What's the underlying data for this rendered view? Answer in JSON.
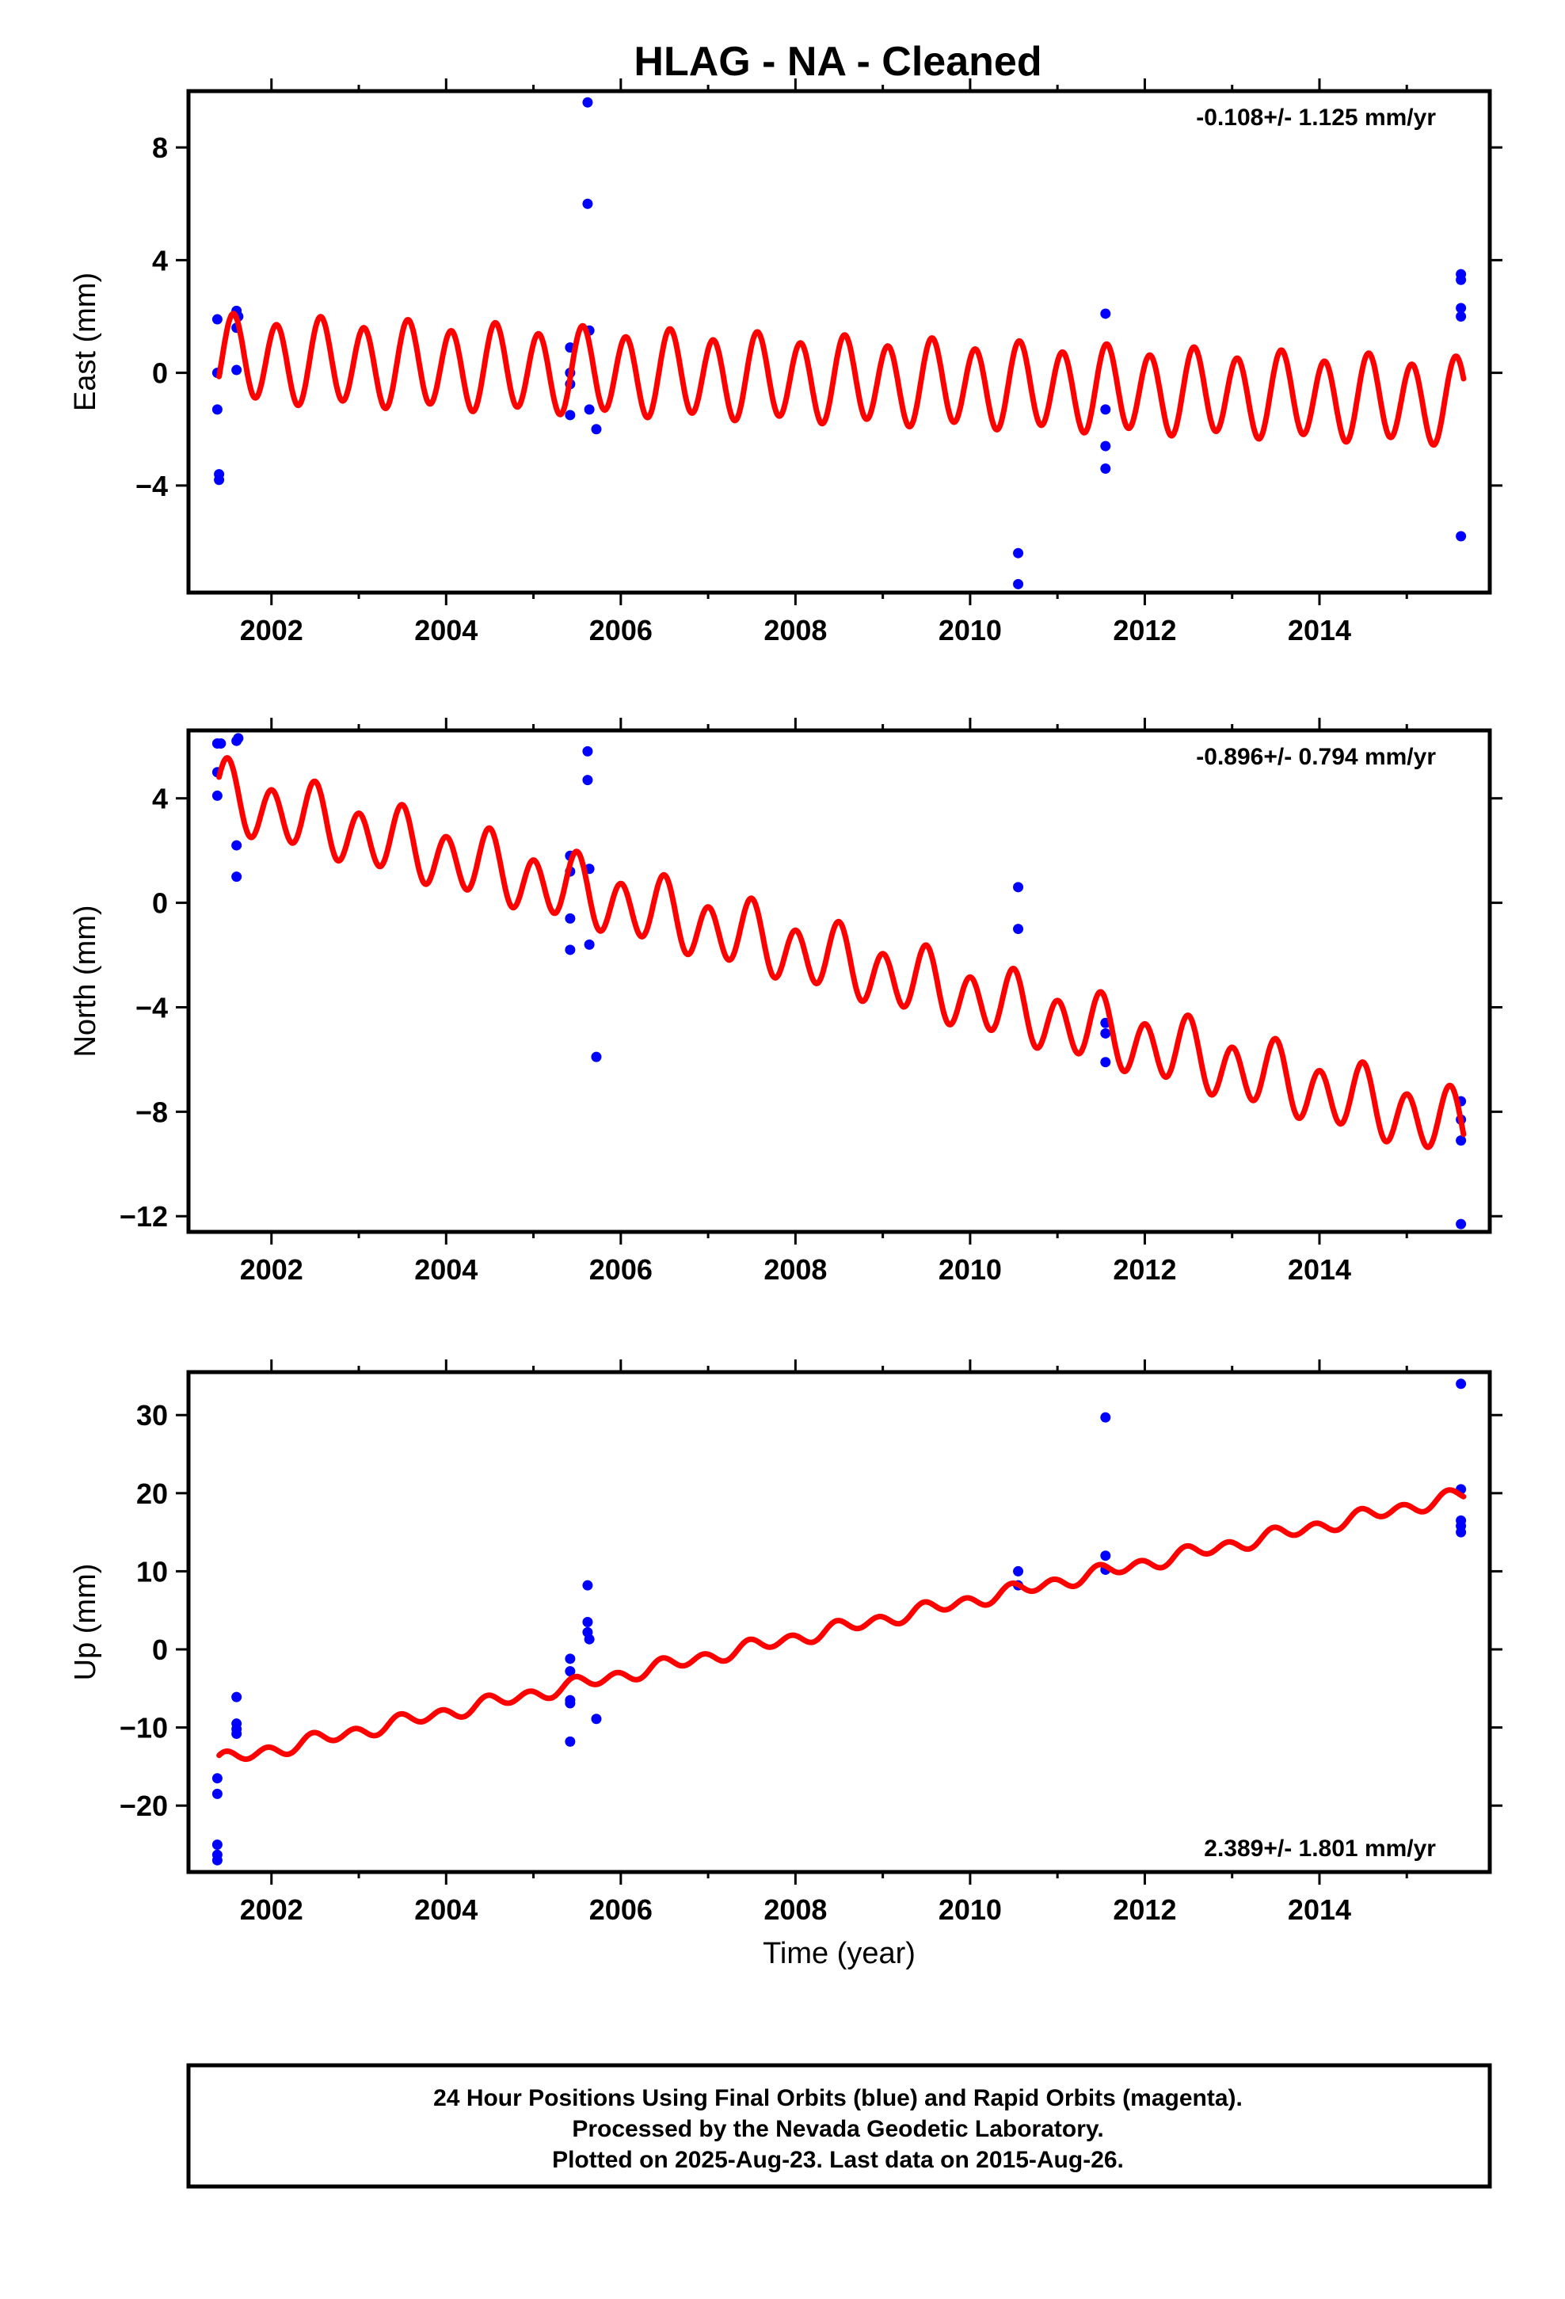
{
  "title": "HLAG  - NA - Cleaned",
  "colors": {
    "final_orbits": "#0000ff",
    "model": "#ff0000",
    "frame": "#000000"
  },
  "footer": {
    "line1": "24 Hour Positions Using Final Orbits (blue) and Rapid Orbits (magenta).",
    "line2": "Processed by the Nevada Geodetic Laboratory.",
    "line3": "Plotted on 2025-Aug-23. Last data on 2015-Aug-26."
  },
  "chart_data": [
    {
      "type": "scatter",
      "id": "east",
      "ylabel": "East (mm)",
      "rate_label": "-0.108+/- 1.125 mm/yr",
      "rate_position": "top-right",
      "xlim": [
        2001.05,
        2015.95
      ],
      "ylim": [
        -7.8,
        10.0
      ],
      "xticks": [
        2002,
        2004,
        2006,
        2008,
        2010,
        2012,
        2014
      ],
      "yticks": [
        8,
        4,
        0,
        -4
      ],
      "ytick_labels": [
        "8",
        "4",
        "0",
        "−4"
      ],
      "model": {
        "offset": 0.5,
        "trend": -0.108,
        "t0": 2001.4,
        "amp_annual": 0.2,
        "phase_annual": 0.0,
        "amp_semi": 1.45,
        "phase_semi": -0.45
      },
      "model_range": [
        2001.4,
        2015.65
      ],
      "points": [
        [
          2001.38,
          1.9
        ],
        [
          2001.38,
          0.0
        ],
        [
          2001.38,
          -1.3
        ],
        [
          2001.4,
          -3.6
        ],
        [
          2001.4,
          -3.8
        ],
        [
          2001.6,
          2.2
        ],
        [
          2001.6,
          1.6
        ],
        [
          2001.6,
          0.1
        ],
        [
          2001.62,
          2.0
        ],
        [
          2005.42,
          0.9
        ],
        [
          2005.42,
          0.0
        ],
        [
          2005.42,
          -0.4
        ],
        [
          2005.42,
          -1.5
        ],
        [
          2005.62,
          9.6
        ],
        [
          2005.62,
          6.0
        ],
        [
          2005.64,
          1.5
        ],
        [
          2005.64,
          -1.3
        ],
        [
          2005.72,
          -2.0
        ],
        [
          2010.55,
          -6.4
        ],
        [
          2010.55,
          -7.5
        ],
        [
          2011.55,
          2.1
        ],
        [
          2011.55,
          -1.3
        ],
        [
          2011.55,
          -2.6
        ],
        [
          2011.55,
          -3.4
        ],
        [
          2015.62,
          3.5
        ],
        [
          2015.62,
          3.3
        ],
        [
          2015.62,
          2.3
        ],
        [
          2015.62,
          2.0
        ],
        [
          2015.62,
          -5.8
        ]
      ]
    },
    {
      "type": "scatter",
      "id": "north",
      "ylabel": "North (mm)",
      "rate_label": "-0.896+/- 0.794 mm/yr",
      "rate_position": "top-right",
      "xlim": [
        2001.05,
        2015.95
      ],
      "ylim": [
        -12.6,
        6.6
      ],
      "xticks": [
        2002,
        2004,
        2006,
        2008,
        2010,
        2012,
        2014
      ],
      "yticks": [
        4,
        0,
        -4,
        -8,
        -12
      ],
      "ytick_labels": [
        "4",
        "0",
        "−4",
        "−8",
        "−12"
      ],
      "model": {
        "offset": 4.1,
        "trend": -0.896,
        "t0": 2001.4,
        "amp_annual": 0.4,
        "phase_annual": 1.2,
        "amp_semi": 1.15,
        "phase_semi": 0.3
      },
      "model_range": [
        2001.4,
        2015.65
      ],
      "points": [
        [
          2001.38,
          6.1
        ],
        [
          2001.42,
          6.1
        ],
        [
          2001.38,
          5.0
        ],
        [
          2001.38,
          4.1
        ],
        [
          2001.6,
          6.2
        ],
        [
          2001.62,
          6.3
        ],
        [
          2001.6,
          2.2
        ],
        [
          2001.6,
          1.0
        ],
        [
          2005.42,
          1.8
        ],
        [
          2005.42,
          1.2
        ],
        [
          2005.42,
          -0.6
        ],
        [
          2005.42,
          -1.8
        ],
        [
          2005.62,
          5.8
        ],
        [
          2005.62,
          4.7
        ],
        [
          2005.64,
          1.3
        ],
        [
          2005.64,
          -1.6
        ],
        [
          2005.72,
          -5.9
        ],
        [
          2010.55,
          0.6
        ],
        [
          2010.55,
          -1.0
        ],
        [
          2011.55,
          -4.6
        ],
        [
          2011.55,
          -5.0
        ],
        [
          2011.55,
          -6.1
        ],
        [
          2015.62,
          -7.6
        ],
        [
          2015.62,
          -8.3
        ],
        [
          2015.62,
          -9.1
        ],
        [
          2015.62,
          -12.3
        ]
      ]
    },
    {
      "type": "scatter",
      "id": "up",
      "ylabel": "Up (mm)",
      "xlabel": "Time (year)",
      "rate_label": "2.389+/- 1.801 mm/yr",
      "rate_position": "bottom-right",
      "xlim": [
        2001.05,
        2015.95
      ],
      "ylim": [
        -28.5,
        35.5
      ],
      "xticks": [
        2002,
        2004,
        2006,
        2008,
        2010,
        2012,
        2014
      ],
      "yticks": [
        30,
        20,
        10,
        0,
        -10,
        -20
      ],
      "ytick_labels": [
        "30",
        "20",
        "10",
        "0",
        "−10",
        "−20"
      ],
      "model": {
        "offset": -14.3,
        "trend": 2.389,
        "t0": 2001.4,
        "amp_annual": 0.4,
        "phase_annual": 0.5,
        "amp_semi": 0.75,
        "phase_semi": 0.8
      },
      "model_range": [
        2001.4,
        2015.65
      ],
      "points": [
        [
          2001.38,
          -16.5
        ],
        [
          2001.38,
          -18.5
        ],
        [
          2001.38,
          -25.0
        ],
        [
          2001.38,
          -26.3
        ],
        [
          2001.38,
          -27.0
        ],
        [
          2001.6,
          -6.1
        ],
        [
          2001.6,
          -9.5
        ],
        [
          2001.6,
          -10.2
        ],
        [
          2001.6,
          -10.8
        ],
        [
          2005.42,
          -1.2
        ],
        [
          2005.42,
          -2.8
        ],
        [
          2005.42,
          -6.5
        ],
        [
          2005.42,
          -6.9
        ],
        [
          2005.42,
          -11.8
        ],
        [
          2005.62,
          8.2
        ],
        [
          2005.62,
          3.5
        ],
        [
          2005.62,
          2.2
        ],
        [
          2005.64,
          1.3
        ],
        [
          2005.72,
          -8.9
        ],
        [
          2010.55,
          10.0
        ],
        [
          2010.55,
          8.2
        ],
        [
          2011.55,
          29.7
        ],
        [
          2011.55,
          12.0
        ],
        [
          2011.55,
          10.2
        ],
        [
          2015.62,
          34.0
        ],
        [
          2015.62,
          20.5
        ],
        [
          2015.62,
          16.5
        ],
        [
          2015.62,
          15.8
        ],
        [
          2015.62,
          15.0
        ]
      ]
    }
  ]
}
